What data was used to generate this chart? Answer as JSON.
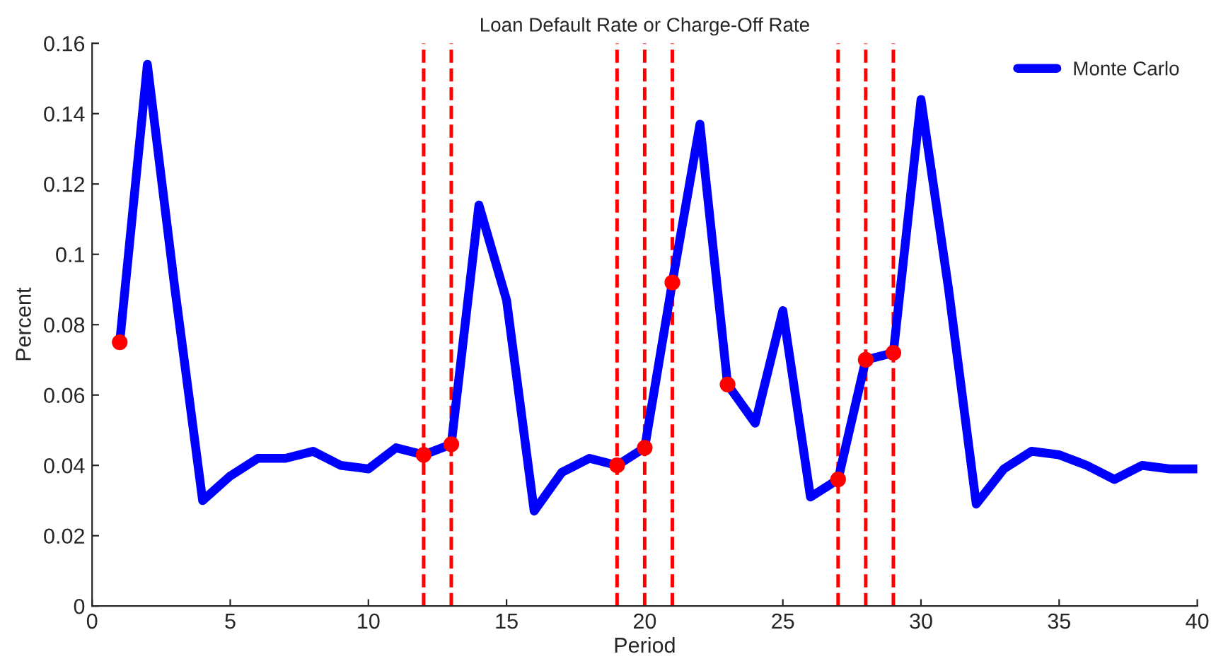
{
  "chart_data": {
    "type": "line",
    "title": "Loan Default Rate or Charge-Off Rate",
    "xlabel": "Period",
    "ylabel": "Percent",
    "series": [
      {
        "name": "Monte Carlo",
        "color": "#0000ff",
        "x": [
          1,
          2,
          3,
          4,
          5,
          6,
          7,
          8,
          9,
          10,
          11,
          12,
          13,
          14,
          15,
          16,
          17,
          18,
          19,
          20,
          21,
          22,
          23,
          24,
          25,
          26,
          27,
          28,
          29,
          30,
          31,
          32,
          33,
          34,
          35,
          36,
          37,
          38,
          39,
          40
        ],
        "values": [
          0.075,
          0.154,
          0.09,
          0.03,
          0.037,
          0.042,
          0.042,
          0.044,
          0.04,
          0.039,
          0.045,
          0.043,
          0.046,
          0.114,
          0.087,
          0.027,
          0.038,
          0.042,
          0.04,
          0.045,
          0.092,
          0.137,
          0.063,
          0.052,
          0.084,
          0.031,
          0.036,
          0.07,
          0.072,
          0.144,
          0.09,
          0.029,
          0.039,
          0.044,
          0.043,
          0.04,
          0.036,
          0.04,
          0.039,
          0.039
        ]
      },
      {
        "color": "#ff0000",
        "type": "scatter",
        "marker": "circle",
        "x": [
          1,
          12,
          13,
          19,
          20,
          21,
          23,
          27,
          28,
          29
        ],
        "values": [
          0.075,
          0.043,
          0.046,
          0.04,
          0.045,
          0.092,
          0.063,
          0.036,
          0.07,
          0.072
        ]
      }
    ],
    "ref_lines": [
      {
        "axis": "x",
        "value": 12,
        "color": "#ff0000",
        "line_style": "dashed"
      },
      {
        "axis": "x",
        "value": 13,
        "color": "#ff0000",
        "line_style": "dashed"
      },
      {
        "axis": "x",
        "value": 19,
        "color": "#ff0000",
        "line_style": "dashed"
      },
      {
        "axis": "x",
        "value": 20,
        "color": "#ff0000",
        "line_style": "dashed"
      },
      {
        "axis": "x",
        "value": 21,
        "color": "#ff0000",
        "line_style": "dashed"
      },
      {
        "axis": "x",
        "value": 27,
        "color": "#ff0000",
        "line_style": "dashed"
      },
      {
        "axis": "x",
        "value": 28,
        "color": "#ff0000",
        "line_style": "dashed"
      },
      {
        "axis": "x",
        "value": 29,
        "color": "#ff0000",
        "line_style": "dashed"
      }
    ],
    "xlim": [
      0,
      40
    ],
    "xticks": [
      0,
      5,
      10,
      15,
      20,
      25,
      30,
      35,
      40
    ],
    "ylim": [
      0,
      0.16
    ],
    "yticks": [
      0,
      0.02,
      0.04,
      0.06,
      0.08,
      0.1,
      0.12,
      0.14,
      0.16
    ],
    "legend": "top right",
    "grid": false
  }
}
